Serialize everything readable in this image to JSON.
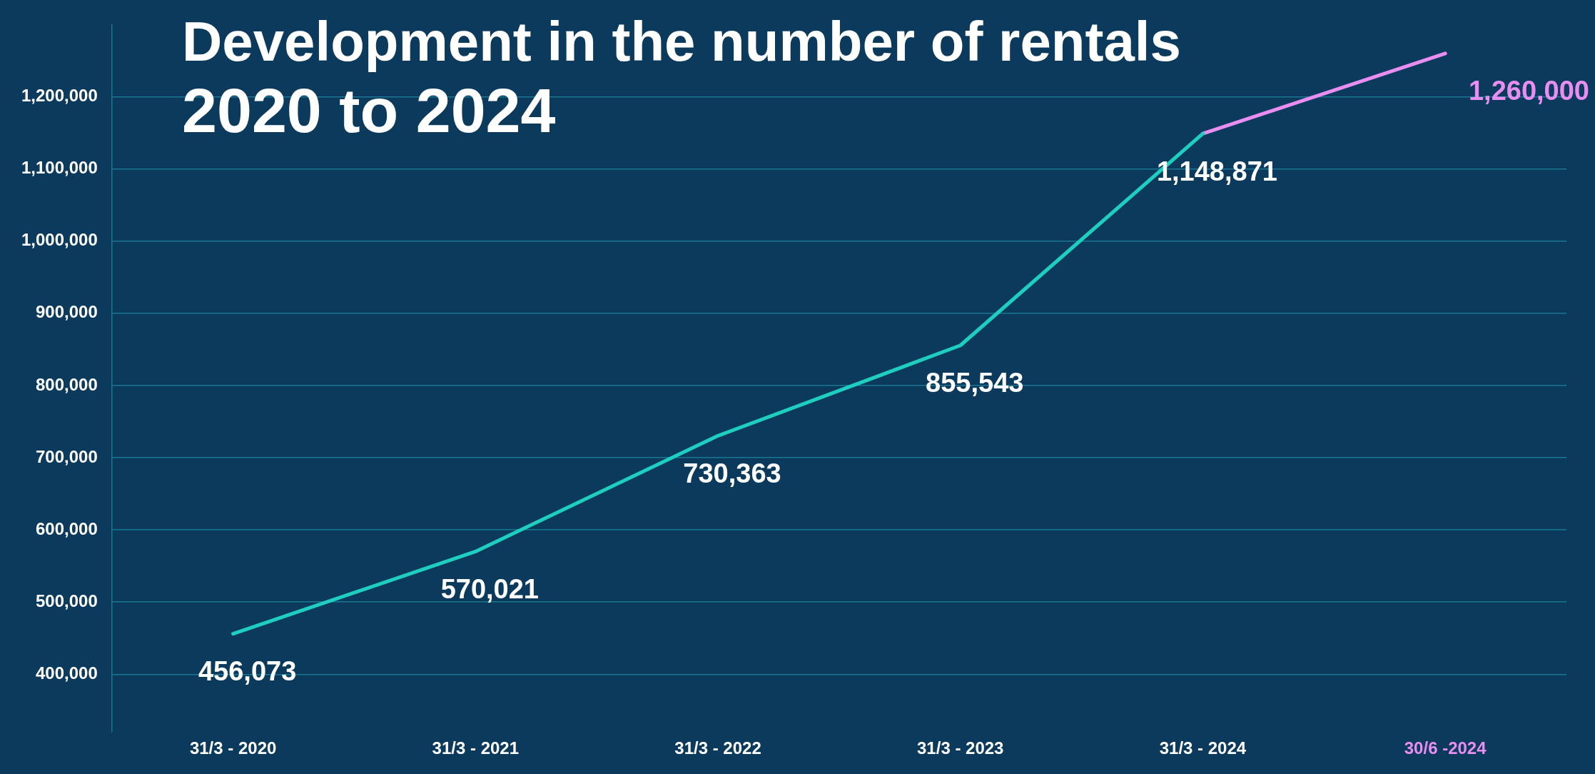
{
  "chart_data": {
    "type": "line",
    "title": "Development in the number of rentals",
    "subtitle": "2020 to 2024",
    "categories": [
      "31/3 - 2020",
      "31/3 - 2021",
      "31/3 - 2022",
      "31/3 - 2023",
      "31/3 - 2024",
      "30/6 -2024"
    ],
    "series": [
      {
        "color": "#1ecfc0",
        "values": [
          456073,
          570021,
          730363,
          855543,
          1148871,
          null
        ],
        "value_labels": [
          "456,073",
          "570,021",
          "730,363",
          "855,543",
          "1,148,871",
          null
        ]
      },
      {
        "color": "#e98ef0",
        "values": [
          null,
          null,
          null,
          null,
          1148871,
          1260000
        ],
        "value_labels": [
          null,
          null,
          null,
          null,
          null,
          "1,260,000"
        ]
      }
    ],
    "ylim": [
      320000,
      1300000
    ],
    "yticks": [
      {
        "value": 400000,
        "label": "400,000"
      },
      {
        "value": 500000,
        "label": "500,000"
      },
      {
        "value": 600000,
        "label": "600,000"
      },
      {
        "value": 700000,
        "label": "700,000"
      },
      {
        "value": 800000,
        "label": "800,000"
      },
      {
        "value": 900000,
        "label": "900,000"
      },
      {
        "value": 1000000,
        "label": "1,000,000"
      },
      {
        "value": 1100000,
        "label": "1,100,000"
      },
      {
        "value": 1200000,
        "label": "1,200,000"
      }
    ],
    "grid": "y",
    "legend": false,
    "marker": "none",
    "line_style": "solid"
  }
}
